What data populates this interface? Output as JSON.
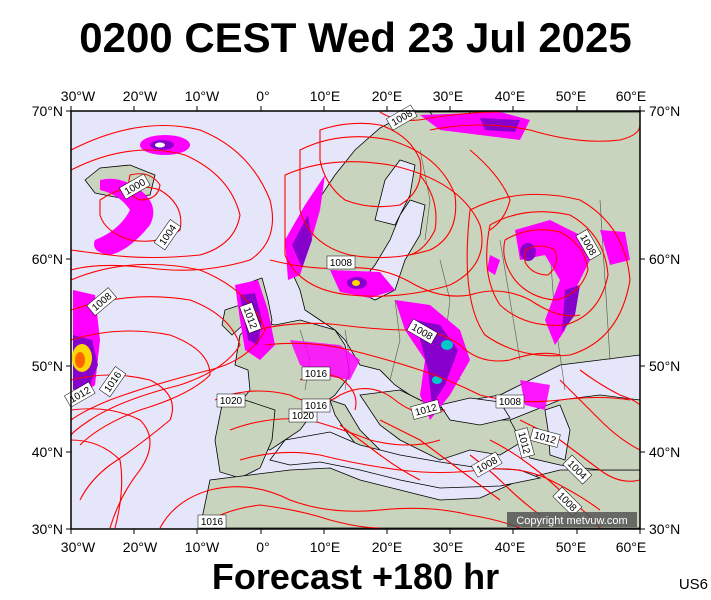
{
  "header": {
    "title": "0200 CEST Wed 23 Jul 2025"
  },
  "footer": {
    "forecast": "Forecast +180 hr",
    "code": "US6"
  },
  "map": {
    "lon_labels": [
      "30°W",
      "20°W",
      "10°W",
      "0°",
      "10°E",
      "20°E",
      "30°E",
      "40°E",
      "50°E",
      "60°E"
    ],
    "lat_labels": [
      "30°N",
      "40°N",
      "50°N",
      "60°N",
      "70°N"
    ],
    "copyright": "Copyright metvuw.com",
    "isobar_labels": [
      "1008",
      "1000",
      "1004",
      "1008",
      "1012",
      "1016",
      "1012",
      "1008",
      "1012",
      "1016",
      "1020",
      "1020",
      "1016",
      "1008",
      "1008",
      "1008",
      "1012",
      "1012",
      "1004",
      "1008",
      "1016",
      "1008"
    ],
    "colors": {
      "ocean": "#e6e6fa",
      "land": "#c8d4be",
      "isobar": "#ff0000",
      "precip_light": "#ff00ff",
      "precip_mid": "#8800cc",
      "precip_heavy": "#ffd700"
    }
  }
}
